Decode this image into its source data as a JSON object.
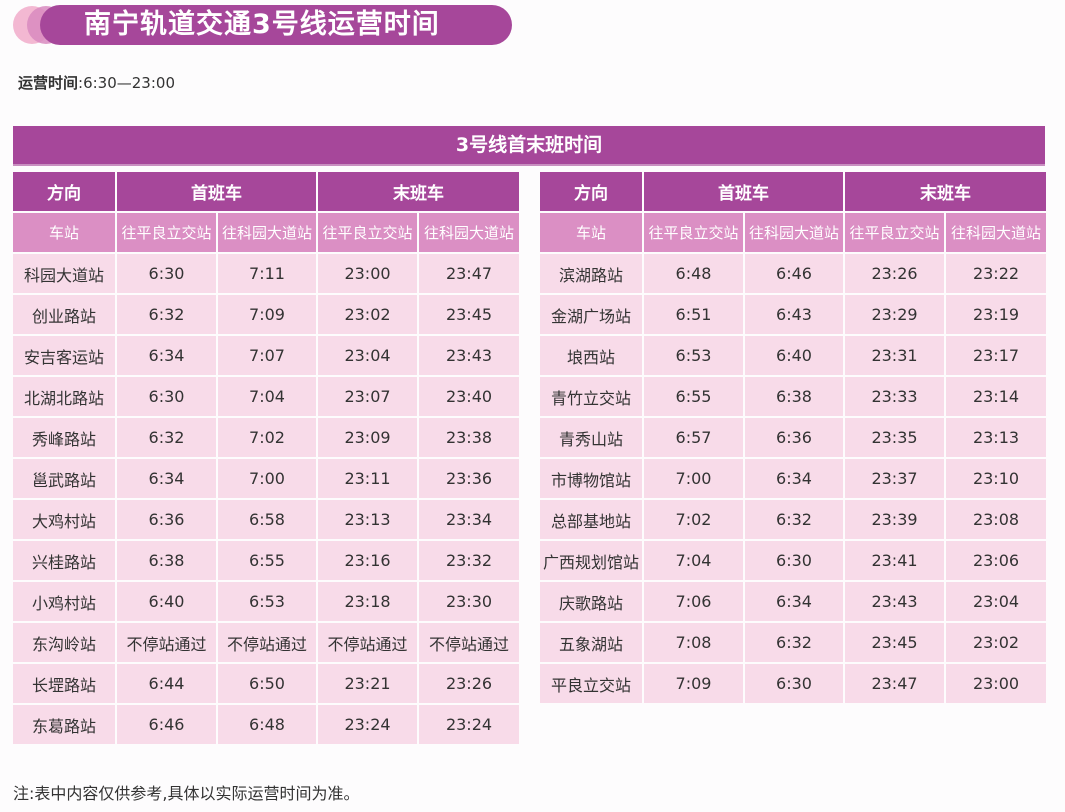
{
  "header": {
    "title": "南宁轨道交通3号线运营时间",
    "hours_label": "运营时间",
    "hours_sep": ":",
    "hours_value": "6:30—23:00"
  },
  "table_title": "3号线首末班时间",
  "columns": {
    "direction": "方向",
    "first": "首班车",
    "last": "末班车",
    "station": "车站",
    "to_a": "往平良立交站",
    "to_b": "往科园大道站"
  },
  "left_rows": [
    {
      "station": "科园大道站",
      "first_a": "6:30",
      "first_b": "7:11",
      "last_a": "23:00",
      "last_b": "23:47"
    },
    {
      "station": "创业路站",
      "first_a": "6:32",
      "first_b": "7:09",
      "last_a": "23:02",
      "last_b": "23:45"
    },
    {
      "station": "安吉客运站",
      "first_a": "6:34",
      "first_b": "7:07",
      "last_a": "23:04",
      "last_b": "23:43"
    },
    {
      "station": "北湖北路站",
      "first_a": "6:30",
      "first_b": "7:04",
      "last_a": "23:07",
      "last_b": "23:40"
    },
    {
      "station": "秀峰路站",
      "first_a": "6:32",
      "first_b": "7:02",
      "last_a": "23:09",
      "last_b": "23:38"
    },
    {
      "station": "邕武路站",
      "first_a": "6:34",
      "first_b": "7:00",
      "last_a": "23:11",
      "last_b": "23:36"
    },
    {
      "station": "大鸡村站",
      "first_a": "6:36",
      "first_b": "6:58",
      "last_a": "23:13",
      "last_b": "23:34"
    },
    {
      "station": "兴桂路站",
      "first_a": "6:38",
      "first_b": "6:55",
      "last_a": "23:16",
      "last_b": "23:32"
    },
    {
      "station": "小鸡村站",
      "first_a": "6:40",
      "first_b": "6:53",
      "last_a": "23:18",
      "last_b": "23:30"
    },
    {
      "station": "东沟岭站",
      "first_a": "不停站通过",
      "first_b": "不停站通过",
      "last_a": "不停站通过",
      "last_b": "不停站通过"
    },
    {
      "station": "长堽路站",
      "first_a": "6:44",
      "first_b": "6:50",
      "last_a": "23:21",
      "last_b": "23:26"
    },
    {
      "station": "东葛路站",
      "first_a": "6:46",
      "first_b": "6:48",
      "last_a": "23:24",
      "last_b": "23:24"
    }
  ],
  "right_rows": [
    {
      "station": "滨湖路站",
      "first_a": "6:48",
      "first_b": "6:46",
      "last_a": "23:26",
      "last_b": "23:22"
    },
    {
      "station": "金湖广场站",
      "first_a": "6:51",
      "first_b": "6:43",
      "last_a": "23:29",
      "last_b": "23:19"
    },
    {
      "station": "埌西站",
      "first_a": "6:53",
      "first_b": "6:40",
      "last_a": "23:31",
      "last_b": "23:17"
    },
    {
      "station": "青竹立交站",
      "first_a": "6:55",
      "first_b": "6:38",
      "last_a": "23:33",
      "last_b": "23:14"
    },
    {
      "station": "青秀山站",
      "first_a": "6:57",
      "first_b": "6:36",
      "last_a": "23:35",
      "last_b": "23:13"
    },
    {
      "station": "市博物馆站",
      "first_a": "7:00",
      "first_b": "6:34",
      "last_a": "23:37",
      "last_b": "23:10"
    },
    {
      "station": "总部基地站",
      "first_a": "7:02",
      "first_b": "6:32",
      "last_a": "23:39",
      "last_b": "23:08"
    },
    {
      "station": "广西规划馆站",
      "first_a": "7:04",
      "first_b": "6:30",
      "last_a": "23:41",
      "last_b": "23:06"
    },
    {
      "station": "庆歌路站",
      "first_a": "7:06",
      "first_b": "6:34",
      "last_a": "23:43",
      "last_b": "23:04"
    },
    {
      "station": "五象湖站",
      "first_a": "7:08",
      "first_b": "6:32",
      "last_a": "23:45",
      "last_b": "23:02"
    },
    {
      "station": "平良立交站",
      "first_a": "7:09",
      "first_b": "6:30",
      "last_a": "23:47",
      "last_b": "23:00"
    }
  ],
  "note": "注:表中内容仅供参考,具体以实际运营时间为准。",
  "colors": {
    "primary": "#a6479a",
    "subheader": "#db8fc4",
    "cell": "#f8dbe9"
  }
}
